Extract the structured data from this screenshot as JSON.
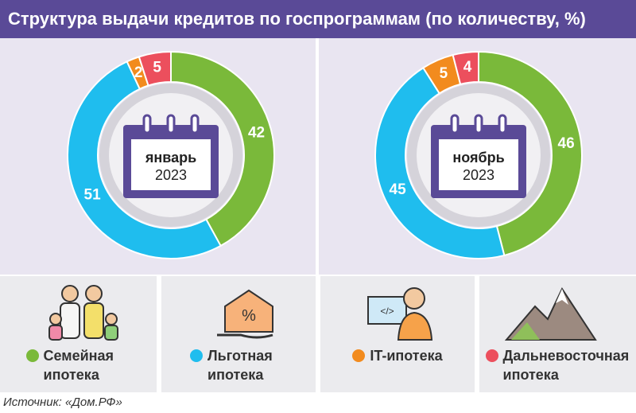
{
  "title": "Структура выдачи кредитов по госпрограммам (по количеству, %)",
  "source": "Источник: «Дом.РФ»",
  "chart_data": [
    {
      "type": "pie",
      "month": "январь",
      "year": "2023",
      "categories": [
        "Семейная ипотека",
        "Льготная ипотека",
        "IT-ипотека",
        "Дальневосточная ипотека"
      ],
      "values": [
        42,
        51,
        2,
        5
      ],
      "colors": [
        "#7ab93a",
        "#1fbdee",
        "#f28b1e",
        "#ec4f5d"
      ]
    },
    {
      "type": "pie",
      "month": "ноябрь",
      "year": "2023",
      "categories": [
        "Семейная ипотека",
        "Льготная ипотека",
        "IT-ипотека",
        "Дальневосточная ипотека"
      ],
      "values": [
        46,
        45,
        5,
        4
      ],
      "colors": [
        "#7ab93a",
        "#1fbdee",
        "#f28b1e",
        "#ec4f5d"
      ]
    }
  ]
}
